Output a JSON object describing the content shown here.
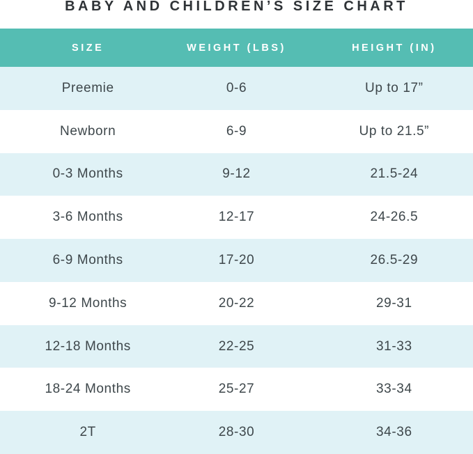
{
  "title": "BABY AND CHILDREN’S SIZE CHART",
  "colors": {
    "header_bg": "#55bdb3",
    "alt_row_bg": "#e0f2f6",
    "plain_row_bg": "#ffffff",
    "header_text": "#ffffff",
    "body_text": "#3e474b",
    "title_text": "#2f3337"
  },
  "chart_data": {
    "type": "table",
    "title": "BABY AND CHILDREN’S SIZE CHART",
    "columns": [
      "SIZE",
      "WEIGHT (LBS)",
      "HEIGHT (IN)"
    ],
    "rows": [
      [
        "Preemie",
        "0-6",
        "Up to 17”"
      ],
      [
        "Newborn",
        "6-9",
        "Up to 21.5”"
      ],
      [
        "0-3 Months",
        "9-12",
        "21.5-24"
      ],
      [
        "3-6 Months",
        "12-17",
        "24-26.5"
      ],
      [
        "6-9 Months",
        "17-20",
        "26.5-29"
      ],
      [
        "9-12 Months",
        "20-22",
        "29-31"
      ],
      [
        "12-18 Months",
        "22-25",
        "31-33"
      ],
      [
        "18-24 Months",
        "25-27",
        "33-34"
      ],
      [
        "2T",
        "28-30",
        "34-36"
      ]
    ],
    "layout": {
      "legend": "none",
      "grid": "off",
      "row_striping": "alternating teal-tinted rows starting with first data row"
    }
  }
}
